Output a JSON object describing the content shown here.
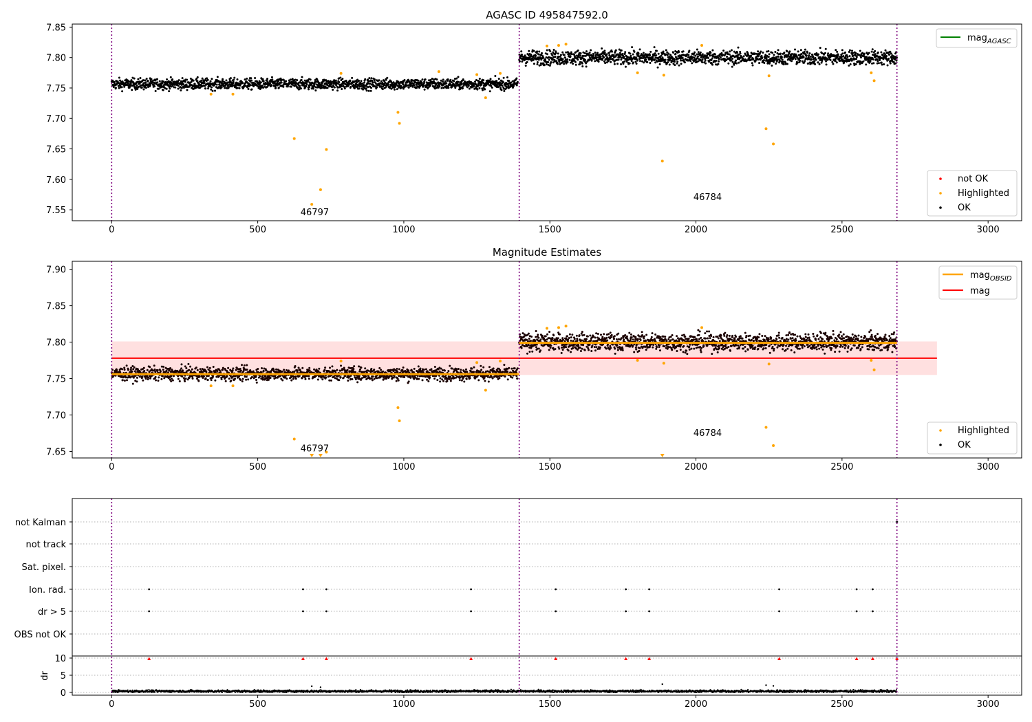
{
  "chart_data": [
    {
      "type": "scatter",
      "title": "AGASC ID 495847592.0",
      "xlim": [
        -135,
        3115
      ],
      "ylim": [
        7.532,
        7.855
      ],
      "xticks": [
        0,
        500,
        1000,
        1500,
        2000,
        2500,
        3000
      ],
      "yticks": [
        7.55,
        7.6,
        7.65,
        7.7,
        7.75,
        7.8,
        7.85
      ],
      "ytick_labels": [
        "7.55",
        "7.60",
        "7.65",
        "7.70",
        "7.75",
        "7.80",
        "7.85"
      ],
      "obs_boundaries": [
        0,
        1395,
        2688
      ],
      "obs_labels": [
        {
          "text": "46797",
          "x": 695,
          "y": 7.541
        },
        {
          "text": "46784",
          "x": 2040,
          "y": 7.566
        }
      ],
      "ok_series": {
        "name": "OK",
        "color": "#000000",
        "segments": [
          {
            "x0": 0,
            "x1": 1390,
            "mean": 7.7565,
            "spread": 0.0045
          },
          {
            "x0": 1395,
            "x1": 2688,
            "mean": 7.8,
            "spread": 0.006
          }
        ]
      },
      "highlighted": {
        "name": "Highlighted",
        "color": "#ffa500",
        "x": [
          340,
          415,
          625,
          685,
          715,
          735,
          785,
          980,
          985,
          1120,
          1250,
          1280,
          1330,
          1490,
          1530,
          1555,
          1800,
          1885,
          1890,
          2020,
          2240,
          2250,
          2265,
          2600,
          2610
        ],
        "y": [
          7.74,
          7.74,
          7.667,
          7.559,
          7.583,
          7.649,
          7.774,
          7.71,
          7.692,
          7.777,
          7.772,
          7.734,
          7.774,
          7.819,
          7.82,
          7.822,
          7.775,
          7.63,
          7.771,
          7.82,
          7.683,
          7.77,
          7.658,
          7.775,
          7.762
        ]
      },
      "not_ok": {
        "name": "not OK",
        "color": "#ff0000",
        "x": [],
        "y": []
      },
      "legend": [
        {
          "label": "not OK",
          "color": "#ff0000"
        },
        {
          "label": "Highlighted",
          "color": "#ffa500"
        },
        {
          "label": "OK",
          "color": "#000000"
        }
      ],
      "legend_position": "lower-right",
      "top_legend": {
        "label": "mag",
        "sub": "AGASC",
        "color": "#008000",
        "position": "upper-right"
      }
    },
    {
      "type": "scatter",
      "title": "Magnitude Estimates",
      "xlim": [
        -135,
        3115
      ],
      "ylim": [
        7.641,
        7.911
      ],
      "xticks": [
        0,
        500,
        1000,
        1500,
        2000,
        2500,
        3000
      ],
      "yticks": [
        7.65,
        7.7,
        7.75,
        7.8,
        7.85,
        7.9
      ],
      "ytick_labels": [
        "7.65",
        "7.70",
        "7.75",
        "7.80",
        "7.85",
        "7.90"
      ],
      "obs_boundaries": [
        0,
        1395,
        2688
      ],
      "obs_labels": [
        {
          "text": "46797",
          "x": 695,
          "y": 7.65
        },
        {
          "text": "46784",
          "x": 2040,
          "y": 7.671
        }
      ],
      "mag": {
        "label": "mag",
        "color": "#ff0000",
        "value": 7.778,
        "band": [
          7.755,
          7.801
        ],
        "x0": 0,
        "x1": 2825
      },
      "mag_obsid": {
        "label": "mag",
        "sub": "OBSID",
        "color": "#ffa500",
        "segments": [
          {
            "x0": 0,
            "x1": 1395,
            "value": 7.756
          },
          {
            "x0": 1395,
            "x1": 2688,
            "value": 7.799
          }
        ]
      },
      "highlighted": {
        "name": "Highlighted",
        "color": "#ffa500",
        "x": [
          340,
          415,
          625,
          735,
          785,
          980,
          985,
          1250,
          1280,
          1330,
          1490,
          1530,
          1555,
          1800,
          1890,
          2020,
          2240,
          2250,
          2265,
          2600,
          2610
        ],
        "y": [
          7.74,
          7.74,
          7.667,
          7.649,
          7.774,
          7.71,
          7.692,
          7.772,
          7.734,
          7.774,
          7.819,
          7.82,
          7.822,
          7.775,
          7.771,
          7.82,
          7.683,
          7.77,
          7.658,
          7.775,
          7.762
        ]
      },
      "below_range_markers": {
        "color": "#ffa500",
        "x": [
          685,
          715,
          1885
        ]
      },
      "legend": [
        {
          "label": "Highlighted",
          "color": "#ffa500"
        },
        {
          "label": "OK",
          "color": "#000000"
        }
      ],
      "legend_position": "lower-right",
      "top_legend_position": "upper-right"
    },
    {
      "type": "scatter",
      "title": "",
      "xlim": [
        -135,
        3115
      ],
      "xticks": [
        0,
        500,
        1000,
        1500,
        2000,
        2500,
        3000
      ],
      "obs_boundaries": [
        0,
        1395,
        2688
      ],
      "flag_rows": [
        "not Kalman",
        "not track",
        "Sat. pixel.",
        "Ion. rad.",
        "dr > 5",
        "OBS not OK"
      ],
      "flags": {
        "Ion. rad.": [
          128,
          655,
          735,
          1230,
          1520,
          1760,
          1840,
          2285,
          2550,
          2605
        ],
        "dr > 5": [
          128,
          655,
          735,
          1230,
          1520,
          1760,
          1840,
          2285,
          2550,
          2605
        ],
        "not Kalman": [
          2688
        ]
      },
      "dr": {
        "ylabel": "dr",
        "ylim": [
          -0.8,
          10.6
        ],
        "yticks": [
          0,
          5,
          10
        ],
        "ytick_labels": [
          "0",
          "5",
          "10"
        ],
        "clipped_color": "#ff0000",
        "clipped_x": [
          128,
          655,
          735,
          1230,
          1520,
          1760,
          1840,
          2285,
          2550,
          2605,
          2688
        ],
        "outliers_x": [
          685,
          715,
          1885,
          2240,
          2265
        ],
        "outliers_y": [
          1.8,
          1.5,
          2.4,
          2.1,
          1.9
        ]
      }
    }
  ]
}
